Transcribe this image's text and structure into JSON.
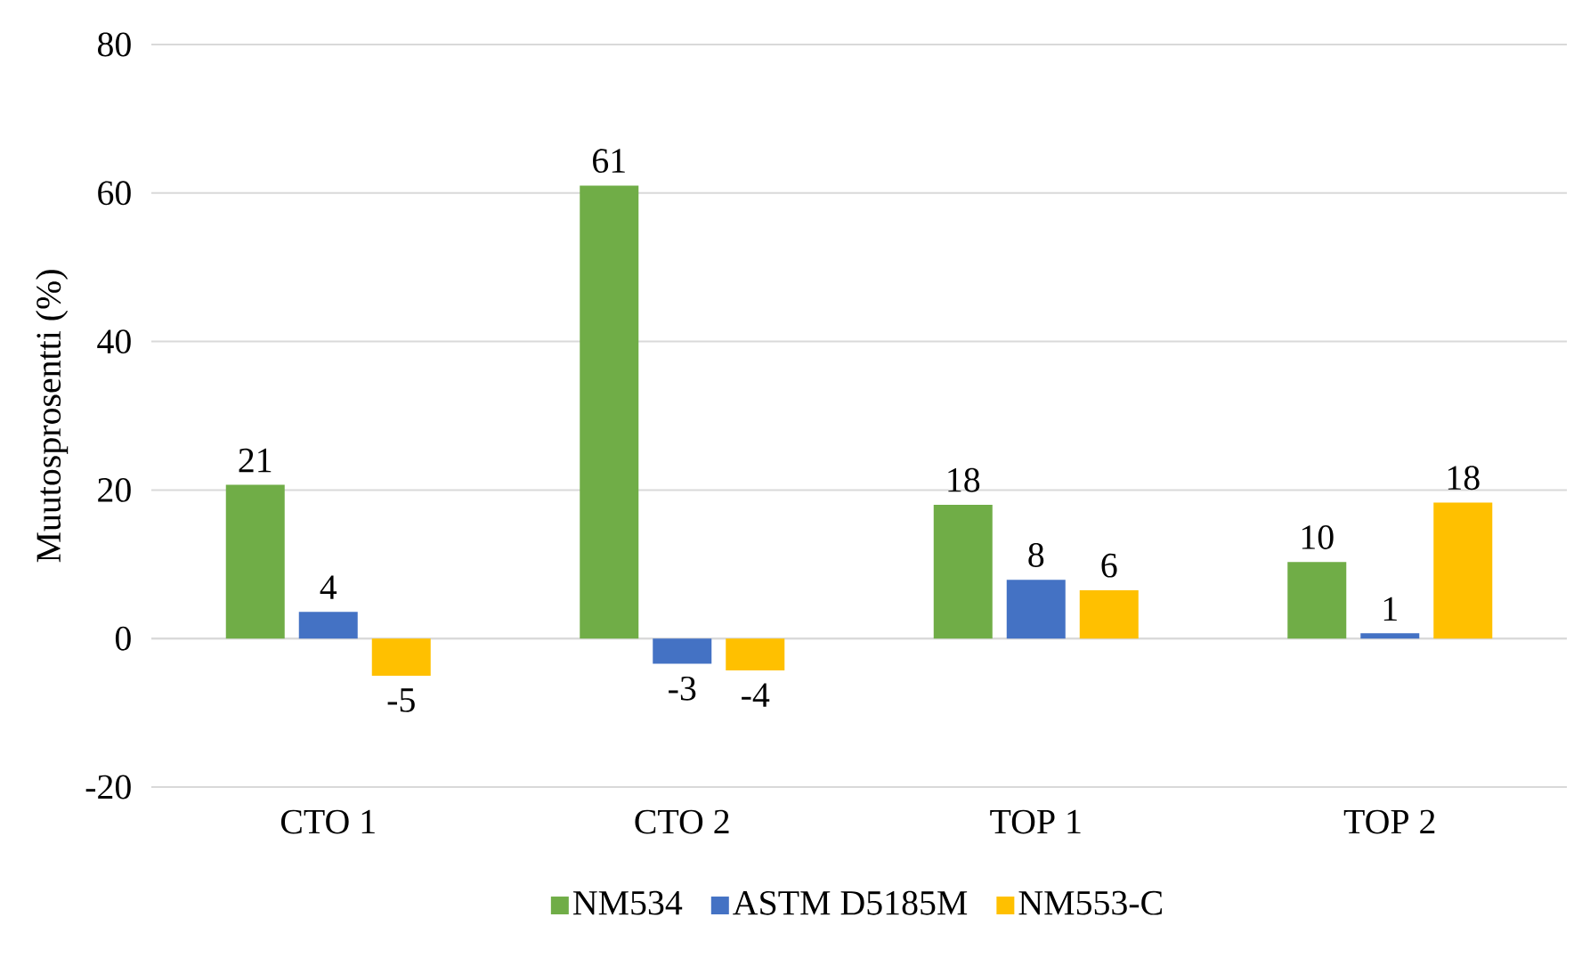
{
  "chart_data": {
    "type": "bar",
    "ylabel": "Muutosprosentti (%)",
    "categories": [
      "CTO 1",
      "CTO 2",
      "TOP 1",
      "TOP 2"
    ],
    "series": [
      {
        "name": "NM534",
        "color": "#70ad47",
        "values": [
          20.7,
          61.0,
          18.0,
          10.3
        ],
        "value_labels": [
          "21",
          "61",
          "18",
          "10"
        ]
      },
      {
        "name": "ASTM D5185M",
        "color": "#4472c4",
        "values": [
          3.6,
          -3.4,
          7.9,
          0.7
        ],
        "value_labels": [
          "4",
          "-3",
          "8",
          "1"
        ]
      },
      {
        "name": "NM553-C",
        "color": "#ffc000",
        "values": [
          -5.0,
          -4.3,
          6.5,
          18.3
        ],
        "value_labels": [
          "-5",
          "-4",
          "6",
          "18"
        ]
      }
    ],
    "ylim": [
      -20,
      80
    ],
    "yticks": [
      -20,
      0,
      20,
      40,
      60,
      80
    ],
    "grid": "y",
    "legend": "bottom"
  }
}
